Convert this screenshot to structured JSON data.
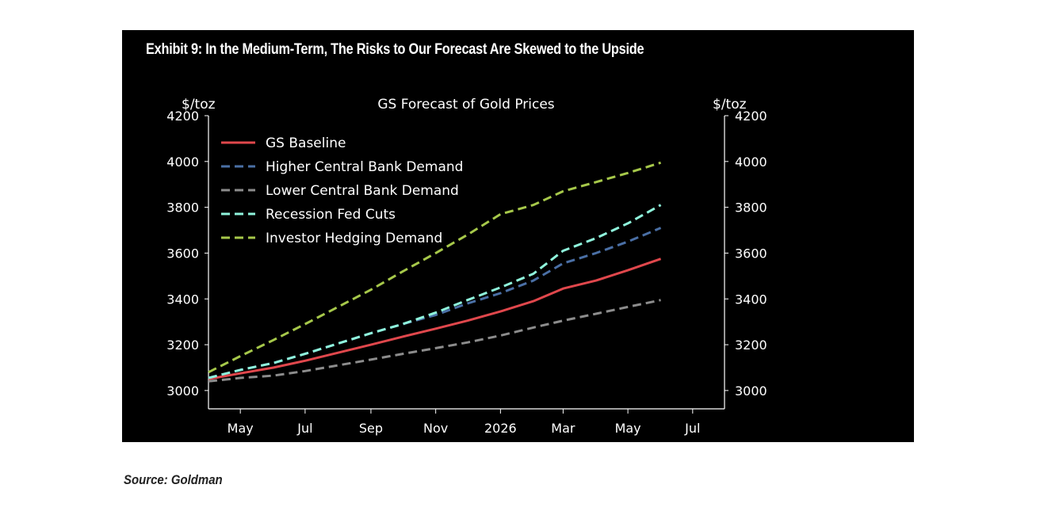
{
  "exhibit_title": "Exhibit 9: In the Medium-Term, The Risks to Our Forecast Are Skewed to the Upside",
  "source": "Source: Goldman",
  "chart_data": {
    "type": "line",
    "title": "GS Forecast of Gold Prices",
    "ylabel_left": "$/toz",
    "ylabel_right": "$/toz",
    "ylim": [
      2920,
      4200
    ],
    "yticks": [
      3000,
      3200,
      3400,
      3600,
      3800,
      4000,
      4200
    ],
    "xlim": [
      "2025-04-01",
      "2026-07-31"
    ],
    "xticks": [
      {
        "date": "2025-05-01",
        "label": "May"
      },
      {
        "date": "2025-07-01",
        "label": "Jul"
      },
      {
        "date": "2025-09-01",
        "label": "Sep"
      },
      {
        "date": "2025-11-01",
        "label": "Nov"
      },
      {
        "date": "2026-01-01",
        "label": "2026"
      },
      {
        "date": "2026-03-01",
        "label": "Mar"
      },
      {
        "date": "2026-05-01",
        "label": "May"
      },
      {
        "date": "2026-07-01",
        "label": "Jul"
      }
    ],
    "x": [
      "2025-04-01",
      "2025-05-01",
      "2025-06-01",
      "2025-07-01",
      "2025-08-01",
      "2025-09-01",
      "2025-10-01",
      "2025-11-01",
      "2025-12-01",
      "2026-01-01",
      "2026-02-01",
      "2026-03-01",
      "2026-04-01",
      "2026-05-01",
      "2026-06-01"
    ],
    "series": [
      {
        "name": "GS Baseline",
        "color": "#e0474c",
        "dash": "solid",
        "values": [
          3050,
          3075,
          3100,
          3130,
          3165,
          3200,
          3235,
          3270,
          3305,
          3345,
          3390,
          3445,
          3480,
          3525,
          3575
        ]
      },
      {
        "name": "Higher Central Bank Demand",
        "color": "#4a6fa5",
        "dash": "dashed",
        "values": [
          3055,
          3090,
          3120,
          3160,
          3205,
          3250,
          3290,
          3330,
          3380,
          3425,
          3480,
          3555,
          3600,
          3650,
          3710
        ]
      },
      {
        "name": "Lower Central Bank Demand",
        "color": "#8c8c8c",
        "dash": "dashed",
        "values": [
          3040,
          3055,
          3065,
          3085,
          3110,
          3135,
          3160,
          3185,
          3210,
          3240,
          3275,
          3305,
          3335,
          3365,
          3395
        ]
      },
      {
        "name": "Recession Fed Cuts",
        "color": "#8ff5dc",
        "dash": "dashed",
        "values": [
          3055,
          3090,
          3120,
          3160,
          3205,
          3250,
          3290,
          3340,
          3395,
          3450,
          3510,
          3610,
          3665,
          3730,
          3810
        ]
      },
      {
        "name": "Investor Hedging Demand",
        "color": "#a6c84a",
        "dash": "dashed",
        "values": [
          3080,
          3150,
          3220,
          3290,
          3365,
          3440,
          3520,
          3600,
          3680,
          3770,
          3810,
          3870,
          3910,
          3950,
          3995
        ]
      }
    ],
    "legend": "top-left",
    "grid": false
  }
}
